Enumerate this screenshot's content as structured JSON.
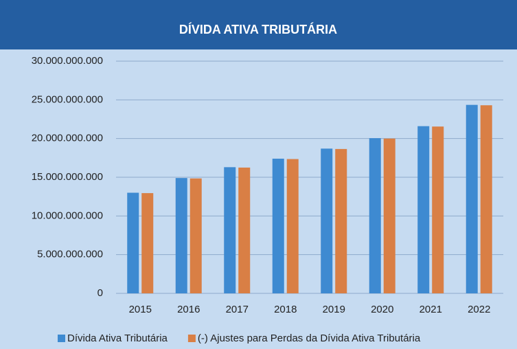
{
  "chart_data": {
    "type": "bar",
    "title": "DÍVIDA ATIVA TRIBUTÁRIA",
    "categories": [
      "2015",
      "2016",
      "2017",
      "2018",
      "2019",
      "2020",
      "2021",
      "2022"
    ],
    "series": [
      {
        "name": "Dívida Ativa Tributária",
        "color": "#3e8ad1",
        "values": [
          13000000000,
          14900000000,
          16300000000,
          17400000000,
          18700000000,
          20050000000,
          21600000000,
          24350000000
        ]
      },
      {
        "name": "(-) Ajustes para Perdas da Dívida Ativa Tributária",
        "color": "#d97f45",
        "values": [
          12950000000,
          14850000000,
          16250000000,
          17350000000,
          18650000000,
          20000000000,
          21550000000,
          24300000000
        ]
      }
    ],
    "ylim": [
      0,
      30000000000
    ],
    "yticks": [
      0,
      {
        "value": 5000000000,
        "label": "5.000.000.000"
      },
      {
        "value": 10000000000,
        "label": "10.000.000.000"
      },
      {
        "value": 15000000000,
        "label": "15.000.000.000"
      },
      {
        "value": 20000000000,
        "label": "20.000.000.000"
      },
      {
        "value": 25000000000,
        "label": "25.000.000.000"
      },
      {
        "value": 30000000000,
        "label": "30.000.000.000"
      }
    ],
    "grid": true,
    "legend": "bottom"
  }
}
